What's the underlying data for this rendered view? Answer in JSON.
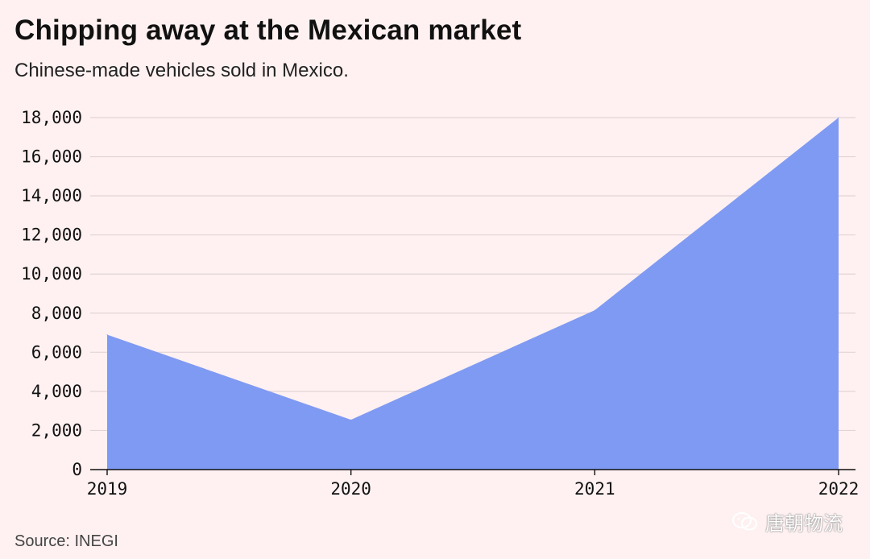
{
  "header": {
    "title": "Chipping away at the Mexican market",
    "subtitle": "Chinese-made vehicles sold in Mexico."
  },
  "footer": {
    "source": "Source: INEGI",
    "watermark": "唐朝物流"
  },
  "colors": {
    "background": "#fff1f1",
    "area_fill": "#7f9af2",
    "gridline": "#e2d4d6",
    "axis": "#111111"
  },
  "chart_data": {
    "type": "area",
    "title": "Chipping away at the Mexican market",
    "subtitle": "Chinese-made vehicles sold in Mexico.",
    "xlabel": "",
    "ylabel": "",
    "x": [
      "2019",
      "2020",
      "2021",
      "2022"
    ],
    "series": [
      {
        "name": "Chinese-made vehicles sold in Mexico",
        "values": [
          6900,
          2550,
          8150,
          18000
        ]
      }
    ],
    "ylim": [
      0,
      18000
    ],
    "yticks": [
      0,
      2000,
      4000,
      6000,
      8000,
      10000,
      12000,
      14000,
      16000,
      18000
    ],
    "ytick_labels": [
      "0",
      "2,000",
      "4,000",
      "6,000",
      "8,000",
      "10,000",
      "12,000",
      "14,000",
      "16,000",
      "18,000"
    ],
    "grid": true,
    "source": "Source: INEGI"
  }
}
